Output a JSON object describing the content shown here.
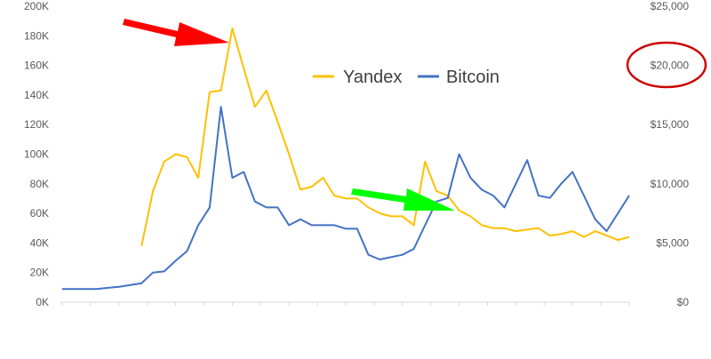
{
  "chart_data": {
    "type": "line",
    "title": "",
    "xlabel": "",
    "ylabel": "",
    "left_axis": {
      "ticks": [
        "0K",
        "20K",
        "40K",
        "60K",
        "80K",
        "100K",
        "120K",
        "140K",
        "160K",
        "180K",
        "200K"
      ],
      "ylim": [
        0,
        200000
      ]
    },
    "right_axis": {
      "ticks": [
        "$0",
        "$5,000",
        "$10,000",
        "$15,000",
        "$20,000",
        "$25,000"
      ],
      "ylim": [
        0,
        25000
      ]
    },
    "x": [
      0,
      0.06,
      0.1,
      0.14,
      0.16,
      0.18,
      0.2,
      0.22,
      0.24,
      0.26,
      0.28,
      0.3,
      0.32,
      0.34,
      0.36,
      0.38,
      0.4,
      0.42,
      0.44,
      0.46,
      0.48,
      0.5,
      0.52,
      0.54,
      0.56,
      0.58,
      0.6,
      0.62,
      0.64,
      0.66,
      0.68,
      0.7,
      0.72,
      0.74,
      0.76,
      0.78,
      0.8,
      0.82,
      0.84,
      0.86,
      0.88,
      0.9,
      0.92,
      0.94,
      0.96,
      0.98,
      1.0
    ],
    "series": [
      {
        "name": "Yandex",
        "axis": "left",
        "color": "#FFC000",
        "values": [
          null,
          null,
          null,
          38000,
          75000,
          95000,
          100000,
          98000,
          84000,
          142000,
          143000,
          185000,
          158000,
          132000,
          143000,
          122000,
          100000,
          76000,
          78000,
          84000,
          72000,
          70000,
          70000,
          64000,
          60000,
          58000,
          58000,
          52000,
          95000,
          75000,
          72000,
          62000,
          58000,
          52000,
          50000,
          50000,
          48000,
          49000,
          50000,
          45000,
          46000,
          48000,
          44000,
          48000,
          45000,
          42000,
          44000
        ]
      },
      {
        "name": "Bitcoin",
        "axis": "right",
        "color": "#4472C4",
        "values": [
          1100,
          1100,
          1300,
          1600,
          2500,
          2600,
          3500,
          4300,
          6500,
          8000,
          16500,
          10500,
          11000,
          8500,
          8000,
          8000,
          6500,
          7000,
          6500,
          6500,
          6500,
          6200,
          6200,
          4000,
          3600,
          3800,
          4000,
          4500,
          6500,
          8500,
          8800,
          12500,
          10500,
          9500,
          9000,
          8000,
          10000,
          12000,
          9000,
          8800,
          10000,
          11000,
          9000,
          7000,
          6000,
          7500,
          9000
        ]
      }
    ],
    "legend": {
      "position": "top-right",
      "labels": [
        "Yandex",
        "Bitcoin"
      ]
    },
    "grid": false
  },
  "annotations": {
    "red_arrow_color": "#FF0000",
    "green_arrow_color": "#00FF00",
    "circle_color": "#CC0000",
    "circled_label": "$20,000"
  }
}
